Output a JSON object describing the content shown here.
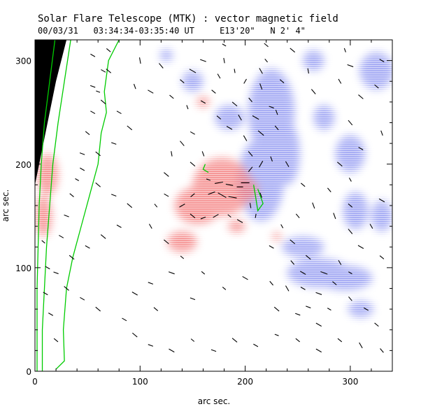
{
  "header": {
    "title": "Solar Flare Telescope (MTK) : vector magnetic field",
    "subtitle": "00/03/31   03:34:34-03:35:40 UT     E13'20\"   N 2' 4\""
  },
  "chart_data": {
    "type": "vector-field",
    "xlabel": "arc sec.",
    "ylabel": "arc sec.",
    "xlim": [
      0,
      340
    ],
    "ylim": [
      0,
      320
    ],
    "xticks": [
      "0",
      "100",
      "200",
      "300"
    ],
    "yticks": [
      "0",
      "100",
      "200",
      "300"
    ],
    "colors": {
      "positive_polarity": "#f26a6a",
      "negative_polarity": "#6f79ee",
      "contour": "#00cc00",
      "limb_background": "#000000",
      "vectors": "#000000"
    },
    "limb_edge": [
      [
        0,
        180
      ],
      [
        5,
        205
      ],
      [
        10,
        230
      ],
      [
        15,
        255
      ],
      [
        20,
        280
      ],
      [
        25,
        300
      ],
      [
        30,
        320
      ]
    ],
    "contours": [
      [
        [
          19,
          320
        ],
        [
          14,
          280
        ],
        [
          9,
          240
        ],
        [
          6,
          200
        ],
        [
          4,
          160
        ],
        [
          3,
          120
        ],
        [
          2,
          80
        ],
        [
          2,
          40
        ],
        [
          2,
          0
        ]
      ],
      [
        [
          34,
          320
        ],
        [
          28,
          280
        ],
        [
          22,
          240
        ],
        [
          17,
          200
        ],
        [
          14,
          160
        ],
        [
          11,
          120
        ],
        [
          9,
          80
        ],
        [
          7,
          40
        ],
        [
          7,
          0
        ]
      ],
      [
        [
          80,
          320
        ],
        [
          70,
          300
        ],
        [
          66,
          270
        ],
        [
          68,
          250
        ],
        [
          63,
          230
        ],
        [
          60,
          200
        ],
        [
          52,
          170
        ],
        [
          44,
          140
        ],
        [
          36,
          110
        ],
        [
          30,
          80
        ],
        [
          27,
          40
        ],
        [
          28,
          10
        ],
        [
          20,
          2
        ]
      ],
      [
        [
          165,
          192
        ],
        [
          160,
          195
        ],
        [
          162,
          200
        ]
      ],
      [
        [
          208,
          180
        ],
        [
          210,
          168
        ],
        [
          212,
          155
        ],
        [
          217,
          162
        ],
        [
          212,
          176
        ]
      ]
    ],
    "positive_regions": [
      {
        "x": 178,
        "y": 178,
        "rx": 28,
        "ry": 28
      },
      {
        "x": 155,
        "y": 160,
        "rx": 22,
        "ry": 18
      },
      {
        "x": 200,
        "y": 175,
        "rx": 12,
        "ry": 12
      },
      {
        "x": 140,
        "y": 125,
        "rx": 14,
        "ry": 10
      },
      {
        "x": 192,
        "y": 140,
        "rx": 8,
        "ry": 6
      },
      {
        "x": 230,
        "y": 130,
        "rx": 4,
        "ry": 4
      },
      {
        "x": 160,
        "y": 260,
        "rx": 6,
        "ry": 5
      },
      {
        "x": 12,
        "y": 190,
        "rx": 10,
        "ry": 20
      },
      {
        "x": 8,
        "y": 150,
        "rx": 8,
        "ry": 20
      }
    ],
    "negative_regions": [
      {
        "x": 215,
        "y": 185,
        "rx": 22,
        "ry": 40
      },
      {
        "x": 225,
        "y": 250,
        "rx": 22,
        "ry": 42
      },
      {
        "x": 185,
        "y": 245,
        "rx": 14,
        "ry": 12
      },
      {
        "x": 240,
        "y": 210,
        "rx": 12,
        "ry": 30
      },
      {
        "x": 270,
        "y": 95,
        "rx": 30,
        "ry": 14
      },
      {
        "x": 295,
        "y": 90,
        "rx": 26,
        "ry": 12
      },
      {
        "x": 255,
        "y": 120,
        "rx": 20,
        "ry": 10
      },
      {
        "x": 305,
        "y": 155,
        "rx": 12,
        "ry": 18
      },
      {
        "x": 330,
        "y": 150,
        "rx": 10,
        "ry": 15
      },
      {
        "x": 300,
        "y": 210,
        "rx": 14,
        "ry": 18
      },
      {
        "x": 275,
        "y": 245,
        "rx": 10,
        "ry": 12
      },
      {
        "x": 325,
        "y": 290,
        "rx": 16,
        "ry": 18
      },
      {
        "x": 265,
        "y": 300,
        "rx": 10,
        "ry": 10
      },
      {
        "x": 150,
        "y": 280,
        "rx": 10,
        "ry": 10
      },
      {
        "x": 125,
        "y": 305,
        "rx": 6,
        "ry": 6
      },
      {
        "x": 310,
        "y": 60,
        "rx": 12,
        "ry": 8
      }
    ],
    "vectors": [
      [
        165,
        185,
        4,
        160
      ],
      [
        175,
        182,
        8,
        10
      ],
      [
        185,
        180,
        7,
        170
      ],
      [
        195,
        178,
        6,
        0
      ],
      [
        200,
        182,
        8,
        0
      ],
      [
        168,
        172,
        7,
        20
      ],
      [
        178,
        170,
        9,
        150
      ],
      [
        188,
        168,
        8,
        170
      ],
      [
        150,
        170,
        5,
        40
      ],
      [
        140,
        160,
        6,
        30
      ],
      [
        150,
        150,
        6,
        140
      ],
      [
        160,
        148,
        5,
        20
      ],
      [
        172,
        150,
        6,
        30
      ],
      [
        185,
        150,
        4,
        140
      ],
      [
        195,
        145,
        6,
        150
      ],
      [
        205,
        160,
        5,
        100
      ],
      [
        210,
        150,
        4,
        80
      ],
      [
        215,
        170,
        5,
        110
      ],
      [
        205,
        195,
        6,
        50
      ],
      [
        215,
        200,
        7,
        60
      ],
      [
        205,
        210,
        6,
        130
      ],
      [
        225,
        205,
        5,
        110
      ],
      [
        200,
        225,
        6,
        120
      ],
      [
        215,
        230,
        7,
        140
      ],
      [
        230,
        235,
        5,
        130
      ],
      [
        185,
        235,
        6,
        150
      ],
      [
        175,
        245,
        5,
        140
      ],
      [
        195,
        245,
        6,
        120
      ],
      [
        210,
        245,
        7,
        150
      ],
      [
        225,
        255,
        5,
        160
      ],
      [
        190,
        258,
        6,
        140
      ],
      [
        205,
        262,
        5,
        130
      ],
      [
        215,
        275,
        6,
        110
      ],
      [
        200,
        280,
        5,
        60
      ],
      [
        190,
        290,
        4,
        100
      ],
      [
        215,
        290,
        6,
        120
      ],
      [
        235,
        280,
        5,
        140
      ],
      [
        220,
        300,
        4,
        130
      ],
      [
        180,
        300,
        5,
        100
      ],
      [
        160,
        300,
        6,
        160
      ],
      [
        150,
        290,
        7,
        150
      ],
      [
        140,
        280,
        5,
        140
      ],
      [
        100,
        300,
        6,
        100
      ],
      [
        120,
        295,
        6,
        130
      ],
      [
        95,
        275,
        5,
        110
      ],
      [
        110,
        270,
        6,
        150
      ],
      [
        130,
        265,
        5,
        140
      ],
      [
        145,
        255,
        4,
        110
      ],
      [
        150,
        230,
        5,
        150
      ],
      [
        140,
        220,
        6,
        130
      ],
      [
        150,
        200,
        6,
        140
      ],
      [
        160,
        210,
        5,
        110
      ],
      [
        130,
        210,
        5,
        100
      ],
      [
        125,
        190,
        6,
        140
      ],
      [
        125,
        170,
        5,
        150
      ],
      [
        115,
        160,
        4,
        130
      ],
      [
        110,
        140,
        5,
        120
      ],
      [
        125,
        125,
        6,
        140
      ],
      [
        140,
        110,
        4,
        140
      ],
      [
        130,
        95,
        6,
        160
      ],
      [
        160,
        95,
        4,
        140
      ],
      [
        110,
        85,
        5,
        160
      ],
      [
        95,
        75,
        6,
        150
      ],
      [
        115,
        60,
        5,
        140
      ],
      [
        150,
        70,
        5,
        160
      ],
      [
        180,
        80,
        4,
        140
      ],
      [
        200,
        90,
        6,
        150
      ],
      [
        225,
        85,
        5,
        130
      ],
      [
        240,
        80,
        6,
        120
      ],
      [
        255,
        80,
        5,
        150
      ],
      [
        270,
        75,
        6,
        160
      ],
      [
        285,
        85,
        5,
        140
      ],
      [
        255,
        95,
        6,
        150
      ],
      [
        275,
        95,
        7,
        160
      ],
      [
        300,
        95,
        4,
        150
      ],
      [
        245,
        105,
        5,
        130
      ],
      [
        260,
        110,
        6,
        140
      ],
      [
        290,
        105,
        5,
        120
      ],
      [
        310,
        120,
        6,
        150
      ],
      [
        330,
        110,
        5,
        140
      ],
      [
        300,
        135,
        6,
        130
      ],
      [
        320,
        140,
        5,
        120
      ],
      [
        285,
        150,
        6,
        110
      ],
      [
        300,
        160,
        5,
        140
      ],
      [
        330,
        165,
        6,
        150
      ],
      [
        280,
        175,
        5,
        130
      ],
      [
        300,
        185,
        4,
        120
      ],
      [
        290,
        200,
        6,
        140
      ],
      [
        310,
        215,
        5,
        150
      ],
      [
        300,
        240,
        6,
        130
      ],
      [
        330,
        230,
        5,
        110
      ],
      [
        310,
        265,
        6,
        140
      ],
      [
        290,
        280,
        5,
        120
      ],
      [
        265,
        270,
        6,
        130
      ],
      [
        260,
        290,
        5,
        100
      ],
      [
        300,
        295,
        6,
        160
      ],
      [
        325,
        275,
        5,
        140
      ],
      [
        295,
        310,
        4,
        110
      ],
      [
        330,
        300,
        5,
        150
      ],
      [
        245,
        310,
        6,
        140
      ],
      [
        230,
        250,
        5,
        110
      ],
      [
        240,
        200,
        6,
        120
      ],
      [
        255,
        180,
        5,
        140
      ],
      [
        265,
        160,
        6,
        110
      ],
      [
        250,
        150,
        5,
        130
      ],
      [
        235,
        140,
        4,
        120
      ],
      [
        245,
        125,
        6,
        140
      ],
      [
        225,
        120,
        5,
        150
      ],
      [
        230,
        60,
        6,
        140
      ],
      [
        250,
        55,
        5,
        160
      ],
      [
        270,
        45,
        6,
        150
      ],
      [
        290,
        30,
        5,
        140
      ],
      [
        310,
        25,
        6,
        120
      ],
      [
        330,
        20,
        5,
        130
      ],
      [
        270,
        20,
        6,
        150
      ],
      [
        250,
        30,
        5,
        140
      ],
      [
        230,
        35,
        4,
        160
      ],
      [
        210,
        25,
        5,
        150
      ],
      [
        190,
        30,
        6,
        140
      ],
      [
        170,
        20,
        5,
        160
      ],
      [
        150,
        30,
        4,
        140
      ],
      [
        130,
        20,
        6,
        150
      ],
      [
        110,
        25,
        5,
        160
      ],
      [
        95,
        35,
        6,
        140
      ],
      [
        85,
        50,
        5,
        150
      ],
      [
        60,
        60,
        6,
        140
      ],
      [
        45,
        70,
        5,
        150
      ],
      [
        30,
        80,
        6,
        140
      ],
      [
        20,
        95,
        5,
        160
      ],
      [
        35,
        110,
        6,
        140
      ],
      [
        50,
        120,
        5,
        150
      ],
      [
        65,
        130,
        6,
        140
      ],
      [
        80,
        140,
        5,
        150
      ],
      [
        90,
        160,
        6,
        140
      ],
      [
        75,
        170,
        5,
        160
      ],
      [
        60,
        180,
        6,
        140
      ],
      [
        45,
        195,
        5,
        150
      ],
      [
        60,
        210,
        6,
        140
      ],
      [
        75,
        220,
        5,
        160
      ],
      [
        90,
        235,
        6,
        140
      ],
      [
        80,
        250,
        5,
        150
      ],
      [
        65,
        260,
        6,
        140
      ],
      [
        55,
        275,
        5,
        160
      ],
      [
        70,
        290,
        6,
        140
      ],
      [
        55,
        305,
        5,
        150
      ],
      [
        20,
        30,
        5,
        140
      ],
      [
        15,
        55,
        5,
        150
      ],
      [
        10,
        75,
        5,
        150
      ],
      [
        12,
        100,
        5,
        150
      ],
      [
        8,
        125,
        4,
        140
      ],
      [
        25,
        130,
        5,
        150
      ],
      [
        30,
        150,
        5,
        160
      ],
      [
        35,
        170,
        5,
        140
      ],
      [
        40,
        185,
        4,
        150
      ],
      [
        45,
        210,
        5,
        160
      ],
      [
        50,
        230,
        5,
        140
      ],
      [
        55,
        250,
        5,
        150
      ],
      [
        60,
        270,
        4,
        160
      ],
      [
        65,
        290,
        5,
        150
      ],
      [
        70,
        310,
        5,
        140
      ],
      [
        160,
        260,
        5,
        150
      ],
      [
        170,
        270,
        5,
        140
      ],
      [
        175,
        285,
        5,
        120
      ],
      [
        180,
        315,
        4,
        150
      ],
      [
        220,
        315,
        5,
        140
      ],
      [
        315,
        60,
        5,
        150
      ],
      [
        325,
        45,
        5,
        140
      ],
      [
        300,
        70,
        5,
        130
      ],
      [
        280,
        60,
        4,
        150
      ],
      [
        260,
        62,
        5,
        160
      ]
    ]
  }
}
